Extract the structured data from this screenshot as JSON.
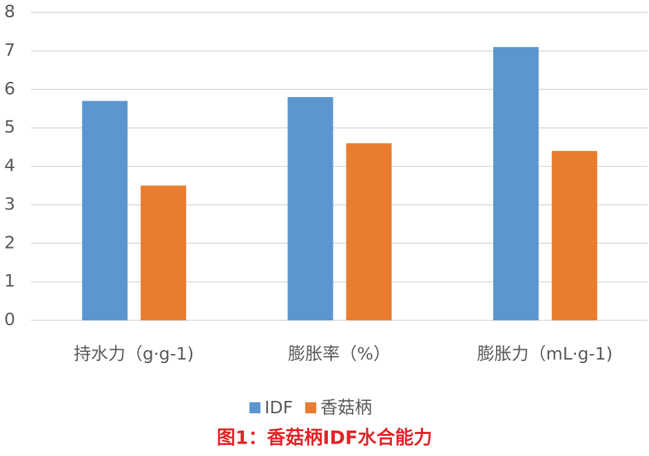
{
  "chart_data": {
    "type": "bar",
    "title": "图1：香菇柄IDF水合能力",
    "categories": [
      "持水力（g·g-1)",
      "膨胀率（%）",
      "膨胀力（mL·g-1)"
    ],
    "series": [
      {
        "name": "IDF",
        "color": "#5b96d0",
        "values": [
          5.7,
          5.8,
          7.1
        ]
      },
      {
        "name": "香菇柄",
        "color": "#e87d2f",
        "values": [
          3.5,
          4.6,
          4.4
        ]
      }
    ],
    "ylim": [
      0,
      8
    ],
    "yticks": [
      0,
      1,
      2,
      3,
      4,
      5,
      6,
      7,
      8
    ],
    "grid": true,
    "legend": "bottom"
  }
}
